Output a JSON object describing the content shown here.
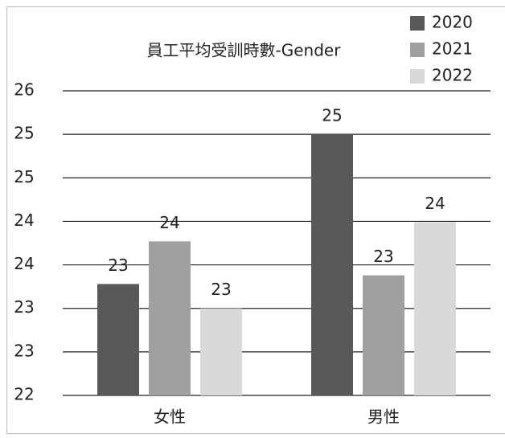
{
  "chart_data": {
    "type": "bar",
    "title": "員工平均受訓時數-Gender",
    "categories": [
      "女性",
      "男性"
    ],
    "series": [
      {
        "name": "2020",
        "color": "#595959",
        "values": [
          23.28,
          25.0
        ],
        "value_labels": [
          "23",
          "25"
        ]
      },
      {
        "name": "2021",
        "color": "#a0a0a0",
        "values": [
          23.77,
          23.38
        ],
        "value_labels": [
          "24",
          "23"
        ]
      },
      {
        "name": "2022",
        "color": "#d9d9d9",
        "values": [
          23.0,
          23.99
        ],
        "value_labels": [
          "23",
          "24"
        ]
      }
    ],
    "ylim": [
      22,
      25.5
    ],
    "yticks": [
      22,
      {
        "value": 22.5,
        "label": "23"
      },
      23,
      {
        "value": 23.5,
        "label": "24"
      },
      24,
      {
        "value": 24.5,
        "label": "25"
      },
      25,
      {
        "value": 25.5,
        "label": "26"
      }
    ],
    "grid": true,
    "legend": "top-right"
  }
}
